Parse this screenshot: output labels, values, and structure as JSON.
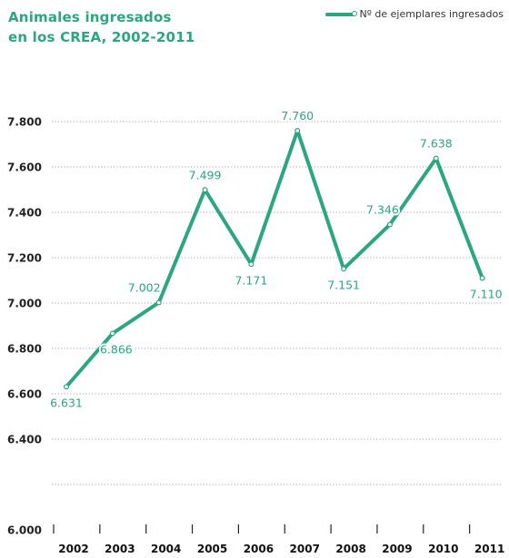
{
  "chart_data": {
    "type": "line",
    "title": [
      "Animales ingresados",
      "en los CREA, 2002-2011"
    ],
    "categories": [
      "2002",
      "2003",
      "2004",
      "2005",
      "2006",
      "2007",
      "2008",
      "2009",
      "2010",
      "2011"
    ],
    "series": [
      {
        "name": "Nº de ejemplares ingresados",
        "values": [
          6631,
          6866,
          7002,
          7499,
          7171,
          7760,
          7151,
          7346,
          7638,
          7110
        ],
        "labels": [
          "6.631",
          "6.866",
          "7.002",
          "7.499",
          "7.171",
          "7.760",
          "7.151",
          "7.346",
          "7.638",
          "7.110"
        ]
      }
    ],
    "yticks": [
      6000,
      6200,
      6400,
      6600,
      6800,
      7000,
      7200,
      7400,
      7600,
      7800
    ],
    "ytick_labels": [
      "6.000",
      "",
      "6.400",
      "6.600",
      "6.800",
      "7.000",
      "7.200",
      "7.400",
      "7.600",
      "7.800"
    ],
    "ylim": [
      6000,
      7800
    ],
    "grid": true,
    "legend_position": "top-right",
    "color": "#2aa77e"
  }
}
